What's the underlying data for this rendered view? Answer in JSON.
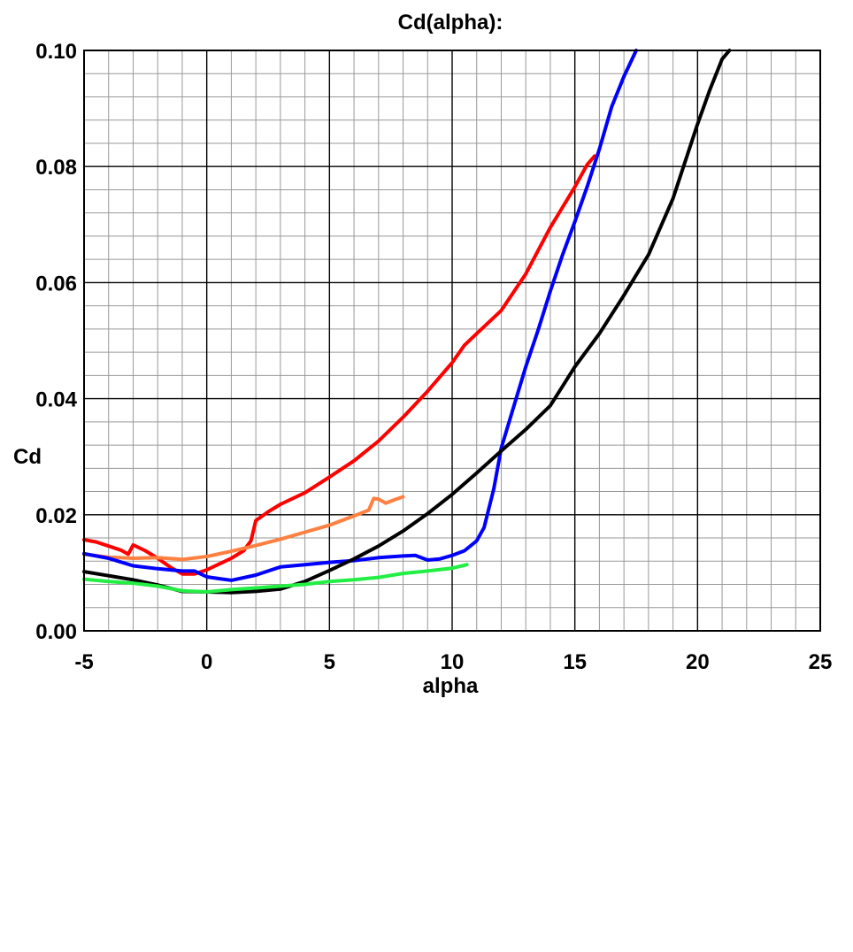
{
  "chart_data": {
    "type": "line",
    "title": "Cd(alpha):",
    "xlabel": "alpha",
    "ylabel": "Cd",
    "xlim": [
      -5,
      25
    ],
    "ylim": [
      0,
      0.1
    ],
    "x_ticks": [
      "-5",
      "0",
      "5",
      "10",
      "15",
      "20",
      "25"
    ],
    "y_ticks": [
      "0.00",
      "0.02",
      "0.04",
      "0.06",
      "0.08",
      "0.10"
    ],
    "grid": true,
    "legend": "none",
    "series": [
      {
        "color": "#ff0000",
        "points": [
          [
            -5,
            0.0157
          ],
          [
            -4.5,
            0.0153
          ],
          [
            -4,
            0.0146
          ],
          [
            -3.5,
            0.0139
          ],
          [
            -3.2,
            0.0132
          ],
          [
            -3,
            0.0148
          ],
          [
            -2.5,
            0.0138
          ],
          [
            -2,
            0.0125
          ],
          [
            -1.5,
            0.011
          ],
          [
            -1,
            0.0098
          ],
          [
            -0.5,
            0.0098
          ],
          [
            0,
            0.0105
          ],
          [
            0.5,
            0.0115
          ],
          [
            1,
            0.0125
          ],
          [
            1.5,
            0.0138
          ],
          [
            1.8,
            0.0155
          ],
          [
            2,
            0.019
          ],
          [
            2.5,
            0.0205
          ],
          [
            3,
            0.0218
          ],
          [
            4,
            0.0238
          ],
          [
            5,
            0.0265
          ],
          [
            6,
            0.0293
          ],
          [
            7,
            0.0327
          ],
          [
            8,
            0.0368
          ],
          [
            9,
            0.0413
          ],
          [
            10,
            0.0462
          ],
          [
            10.5,
            0.0492
          ],
          [
            11,
            0.0512
          ],
          [
            12,
            0.0552
          ],
          [
            13,
            0.0615
          ],
          [
            14,
            0.0695
          ],
          [
            15,
            0.0765
          ],
          [
            15.5,
            0.0803
          ],
          [
            15.8,
            0.0818
          ]
        ]
      },
      {
        "color": "#ff8040",
        "points": [
          [
            -5,
            0.0132
          ],
          [
            -4,
            0.0127
          ],
          [
            -3,
            0.0125
          ],
          [
            -2,
            0.0126
          ],
          [
            -1,
            0.0123
          ],
          [
            0,
            0.0128
          ],
          [
            1,
            0.0137
          ],
          [
            2,
            0.0147
          ],
          [
            3,
            0.0158
          ],
          [
            4,
            0.017
          ],
          [
            5,
            0.0182
          ],
          [
            6,
            0.0198
          ],
          [
            6.6,
            0.0208
          ],
          [
            6.8,
            0.0228
          ],
          [
            7,
            0.0227
          ],
          [
            7.3,
            0.022
          ],
          [
            7.6,
            0.0225
          ],
          [
            8,
            0.0231
          ]
        ]
      },
      {
        "color": "#0000ff",
        "points": [
          [
            -5,
            0.0133
          ],
          [
            -4,
            0.0125
          ],
          [
            -3,
            0.0112
          ],
          [
            -2,
            0.0107
          ],
          [
            -1,
            0.0103
          ],
          [
            -0.5,
            0.0103
          ],
          [
            0,
            0.0093
          ],
          [
            0.5,
            0.009
          ],
          [
            1,
            0.0087
          ],
          [
            2,
            0.0096
          ],
          [
            2.5,
            0.0103
          ],
          [
            3,
            0.011
          ],
          [
            4,
            0.0114
          ],
          [
            5,
            0.0118
          ],
          [
            6,
            0.0121
          ],
          [
            7,
            0.0126
          ],
          [
            8,
            0.0129
          ],
          [
            8.5,
            0.013
          ],
          [
            9,
            0.0122
          ],
          [
            9.5,
            0.0124
          ],
          [
            10,
            0.013
          ],
          [
            10.5,
            0.0138
          ],
          [
            11,
            0.0155
          ],
          [
            11.3,
            0.0178
          ],
          [
            11.7,
            0.0245
          ],
          [
            12,
            0.0315
          ],
          [
            12.5,
            0.0385
          ],
          [
            13,
            0.0455
          ],
          [
            13.5,
            0.0518
          ],
          [
            14,
            0.0585
          ],
          [
            14.5,
            0.0648
          ],
          [
            15,
            0.0705
          ],
          [
            15.5,
            0.0765
          ],
          [
            16,
            0.083
          ],
          [
            16.5,
            0.0903
          ],
          [
            17,
            0.0955
          ],
          [
            17.5,
            0.1
          ]
        ]
      },
      {
        "color": "#000000",
        "points": [
          [
            -5,
            0.0102
          ],
          [
            -4,
            0.0095
          ],
          [
            -3,
            0.0088
          ],
          [
            -2,
            0.0079
          ],
          [
            -1,
            0.0068
          ],
          [
            0,
            0.0067
          ],
          [
            1,
            0.0066
          ],
          [
            2,
            0.0068
          ],
          [
            3,
            0.0072
          ],
          [
            4,
            0.0085
          ],
          [
            5,
            0.0104
          ],
          [
            6,
            0.0124
          ],
          [
            7,
            0.0146
          ],
          [
            8,
            0.0172
          ],
          [
            9,
            0.0202
          ],
          [
            10,
            0.0235
          ],
          [
            11,
            0.0272
          ],
          [
            12,
            0.031
          ],
          [
            13,
            0.0347
          ],
          [
            14,
            0.0388
          ],
          [
            15,
            0.0455
          ],
          [
            16,
            0.0512
          ],
          [
            17,
            0.0578
          ],
          [
            18,
            0.0648
          ],
          [
            19,
            0.0745
          ],
          [
            20,
            0.0873
          ],
          [
            20.5,
            0.0932
          ],
          [
            21,
            0.0985
          ],
          [
            21.3,
            0.1
          ]
        ]
      },
      {
        "color": "#22ee44",
        "points": [
          [
            -5,
            0.0089
          ],
          [
            -4,
            0.0085
          ],
          [
            -3,
            0.0082
          ],
          [
            -2,
            0.0077
          ],
          [
            -1,
            0.0069
          ],
          [
            0,
            0.0067
          ],
          [
            1,
            0.0071
          ],
          [
            2,
            0.0074
          ],
          [
            3,
            0.0077
          ],
          [
            4,
            0.008
          ],
          [
            5,
            0.0085
          ],
          [
            6,
            0.0088
          ],
          [
            7,
            0.0092
          ],
          [
            8,
            0.0099
          ],
          [
            9,
            0.0103
          ],
          [
            10,
            0.0108
          ],
          [
            10.6,
            0.0114
          ]
        ]
      }
    ]
  }
}
